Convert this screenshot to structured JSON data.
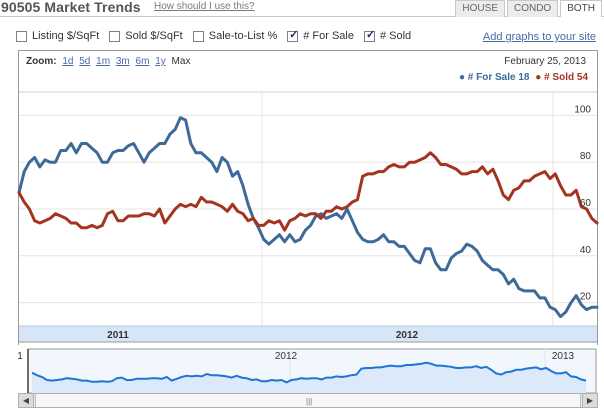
{
  "header": {
    "title": "90505 Market Trends",
    "help_link": "How should I use this?",
    "tabs": [
      {
        "label": "HOUSE",
        "active": false
      },
      {
        "label": "CONDO",
        "active": false
      },
      {
        "label": "BOTH",
        "active": true
      }
    ]
  },
  "controls": {
    "checkboxes": [
      {
        "label": "Listing $/SqFt",
        "checked": false
      },
      {
        "label": "Sold $/SqFt",
        "checked": false
      },
      {
        "label": "Sale-to-List %",
        "checked": false
      },
      {
        "label": "# For Sale",
        "checked": true
      },
      {
        "label": "# Sold",
        "checked": true
      }
    ],
    "add_graphs_link": "Add graphs to your site"
  },
  "zoom": {
    "label": "Zoom:",
    "options": [
      "1d",
      "5d",
      "1m",
      "3m",
      "6m",
      "1y"
    ],
    "max_label": "Max"
  },
  "date_label": "February 25, 2013",
  "legend": {
    "for_sale": "# For Sale 18",
    "sold": "# Sold 54"
  },
  "colors": {
    "for_sale": "#3e6a9a",
    "sold": "#a4341f",
    "navigator": "#1f74d8"
  },
  "scrollbar": {
    "left_arrow": "◀",
    "right_arrow": "▶",
    "grip": "|||"
  },
  "chart_data": {
    "type": "line",
    "y_ticks": [
      20,
      40,
      60,
      80,
      100
    ],
    "ylim": [
      10,
      110
    ],
    "x_labels": [
      "2011",
      "2012"
    ],
    "navigator_labels": [
      "1",
      "2012",
      "2013"
    ],
    "series": [
      {
        "name": "# For Sale",
        "values": [
          67,
          76,
          80,
          82,
          78,
          81,
          80,
          80,
          85,
          85,
          88,
          84,
          88,
          88,
          86,
          84,
          80,
          80,
          84,
          85,
          85,
          87,
          88,
          84,
          80,
          84,
          86,
          88,
          88,
          92,
          94,
          99,
          98,
          88,
          84,
          84,
          82,
          80,
          76,
          82,
          80,
          74,
          76,
          70,
          62,
          56,
          52,
          47,
          45,
          47,
          49,
          46,
          49,
          46,
          47,
          51,
          53,
          57,
          58,
          56,
          57,
          58,
          56,
          60,
          55,
          50,
          47,
          46,
          46,
          47,
          49,
          46,
          46,
          44,
          44,
          41,
          38,
          37,
          43,
          43,
          37,
          34,
          34,
          39,
          41,
          42,
          45,
          44,
          42,
          38,
          36,
          34,
          34,
          32,
          28,
          30,
          26,
          25,
          25,
          25,
          22,
          22,
          18,
          17,
          14,
          16,
          20,
          23,
          19,
          17,
          18,
          18
        ]
      },
      {
        "name": "# Sold",
        "values": [
          67,
          63,
          60,
          55,
          54,
          55,
          56,
          58,
          57,
          56,
          54,
          54,
          52,
          52,
          53,
          52,
          53,
          58,
          59,
          55,
          55,
          57,
          57,
          57,
          58,
          58,
          57,
          60,
          54,
          57,
          60,
          62,
          61,
          62,
          61,
          65,
          63,
          63,
          62,
          61,
          59,
          62,
          59,
          58,
          55,
          56,
          53,
          53,
          55,
          54,
          55,
          51,
          55,
          56,
          58,
          57,
          58,
          58,
          56,
          59,
          59,
          61,
          60,
          61,
          63,
          64,
          74,
          75,
          75,
          76,
          76,
          78,
          79,
          78,
          78,
          80,
          80,
          81,
          82,
          84,
          82,
          79,
          79,
          78,
          77,
          75,
          75,
          76,
          76,
          78,
          75,
          77,
          72,
          66,
          64,
          68,
          69,
          72,
          72,
          74,
          75,
          76,
          73,
          75,
          70,
          66,
          66,
          68,
          61,
          60,
          56,
          54
        ]
      }
    ]
  }
}
